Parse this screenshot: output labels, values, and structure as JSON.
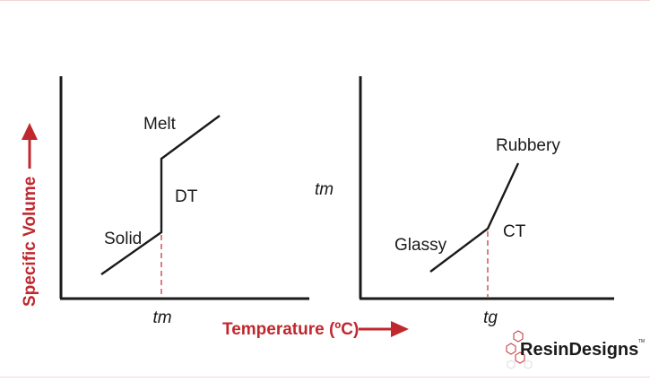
{
  "diagram": {
    "y_axis_title": "Specific Volume",
    "x_axis_title": "Temperature (ºC)",
    "left_chart": {
      "labels": {
        "melt": "Melt",
        "dt": "DT",
        "solid": "Solid",
        "tick": "tm"
      }
    },
    "right_chart": {
      "labels": {
        "rubbery": "Rubbery",
        "ct": "CT",
        "glassy": "Glassy",
        "tick": "tg"
      }
    },
    "floating_label": "tm"
  },
  "logo": {
    "text": "ResinDesigns",
    "tm": "TM"
  },
  "colors": {
    "accent": "#c0282e",
    "line": "#1a1a1a",
    "dashed": "#c0282e"
  }
}
